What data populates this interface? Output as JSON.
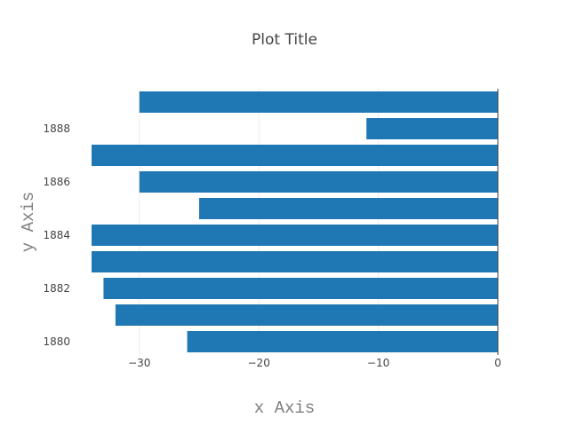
{
  "chart_data": {
    "type": "bar",
    "orientation": "horizontal",
    "title": "Plot Title",
    "xlabel": "x Axis",
    "ylabel": "y Axis",
    "xlim": [
      -34,
      0
    ],
    "ylim": [
      1879.5,
      1889.5
    ],
    "x_ticks": [
      -30,
      -20,
      -10,
      0
    ],
    "x_tick_labels": [
      "−30",
      "−20",
      "−10",
      "0"
    ],
    "y_ticks": [
      1880,
      1882,
      1884,
      1886,
      1888
    ],
    "y_tick_labels": [
      "1880",
      "1882",
      "1884",
      "1886",
      "1888"
    ],
    "grid": true,
    "bar_color": "#1f77b4",
    "series": [
      {
        "categories": [
          1880,
          1881,
          1882,
          1883,
          1884,
          1885,
          1886,
          1887,
          1888,
          1889
        ],
        "values": [
          -26,
          -32,
          -33,
          -34,
          -34,
          -25,
          -30,
          -34,
          -11,
          -30
        ]
      }
    ]
  }
}
